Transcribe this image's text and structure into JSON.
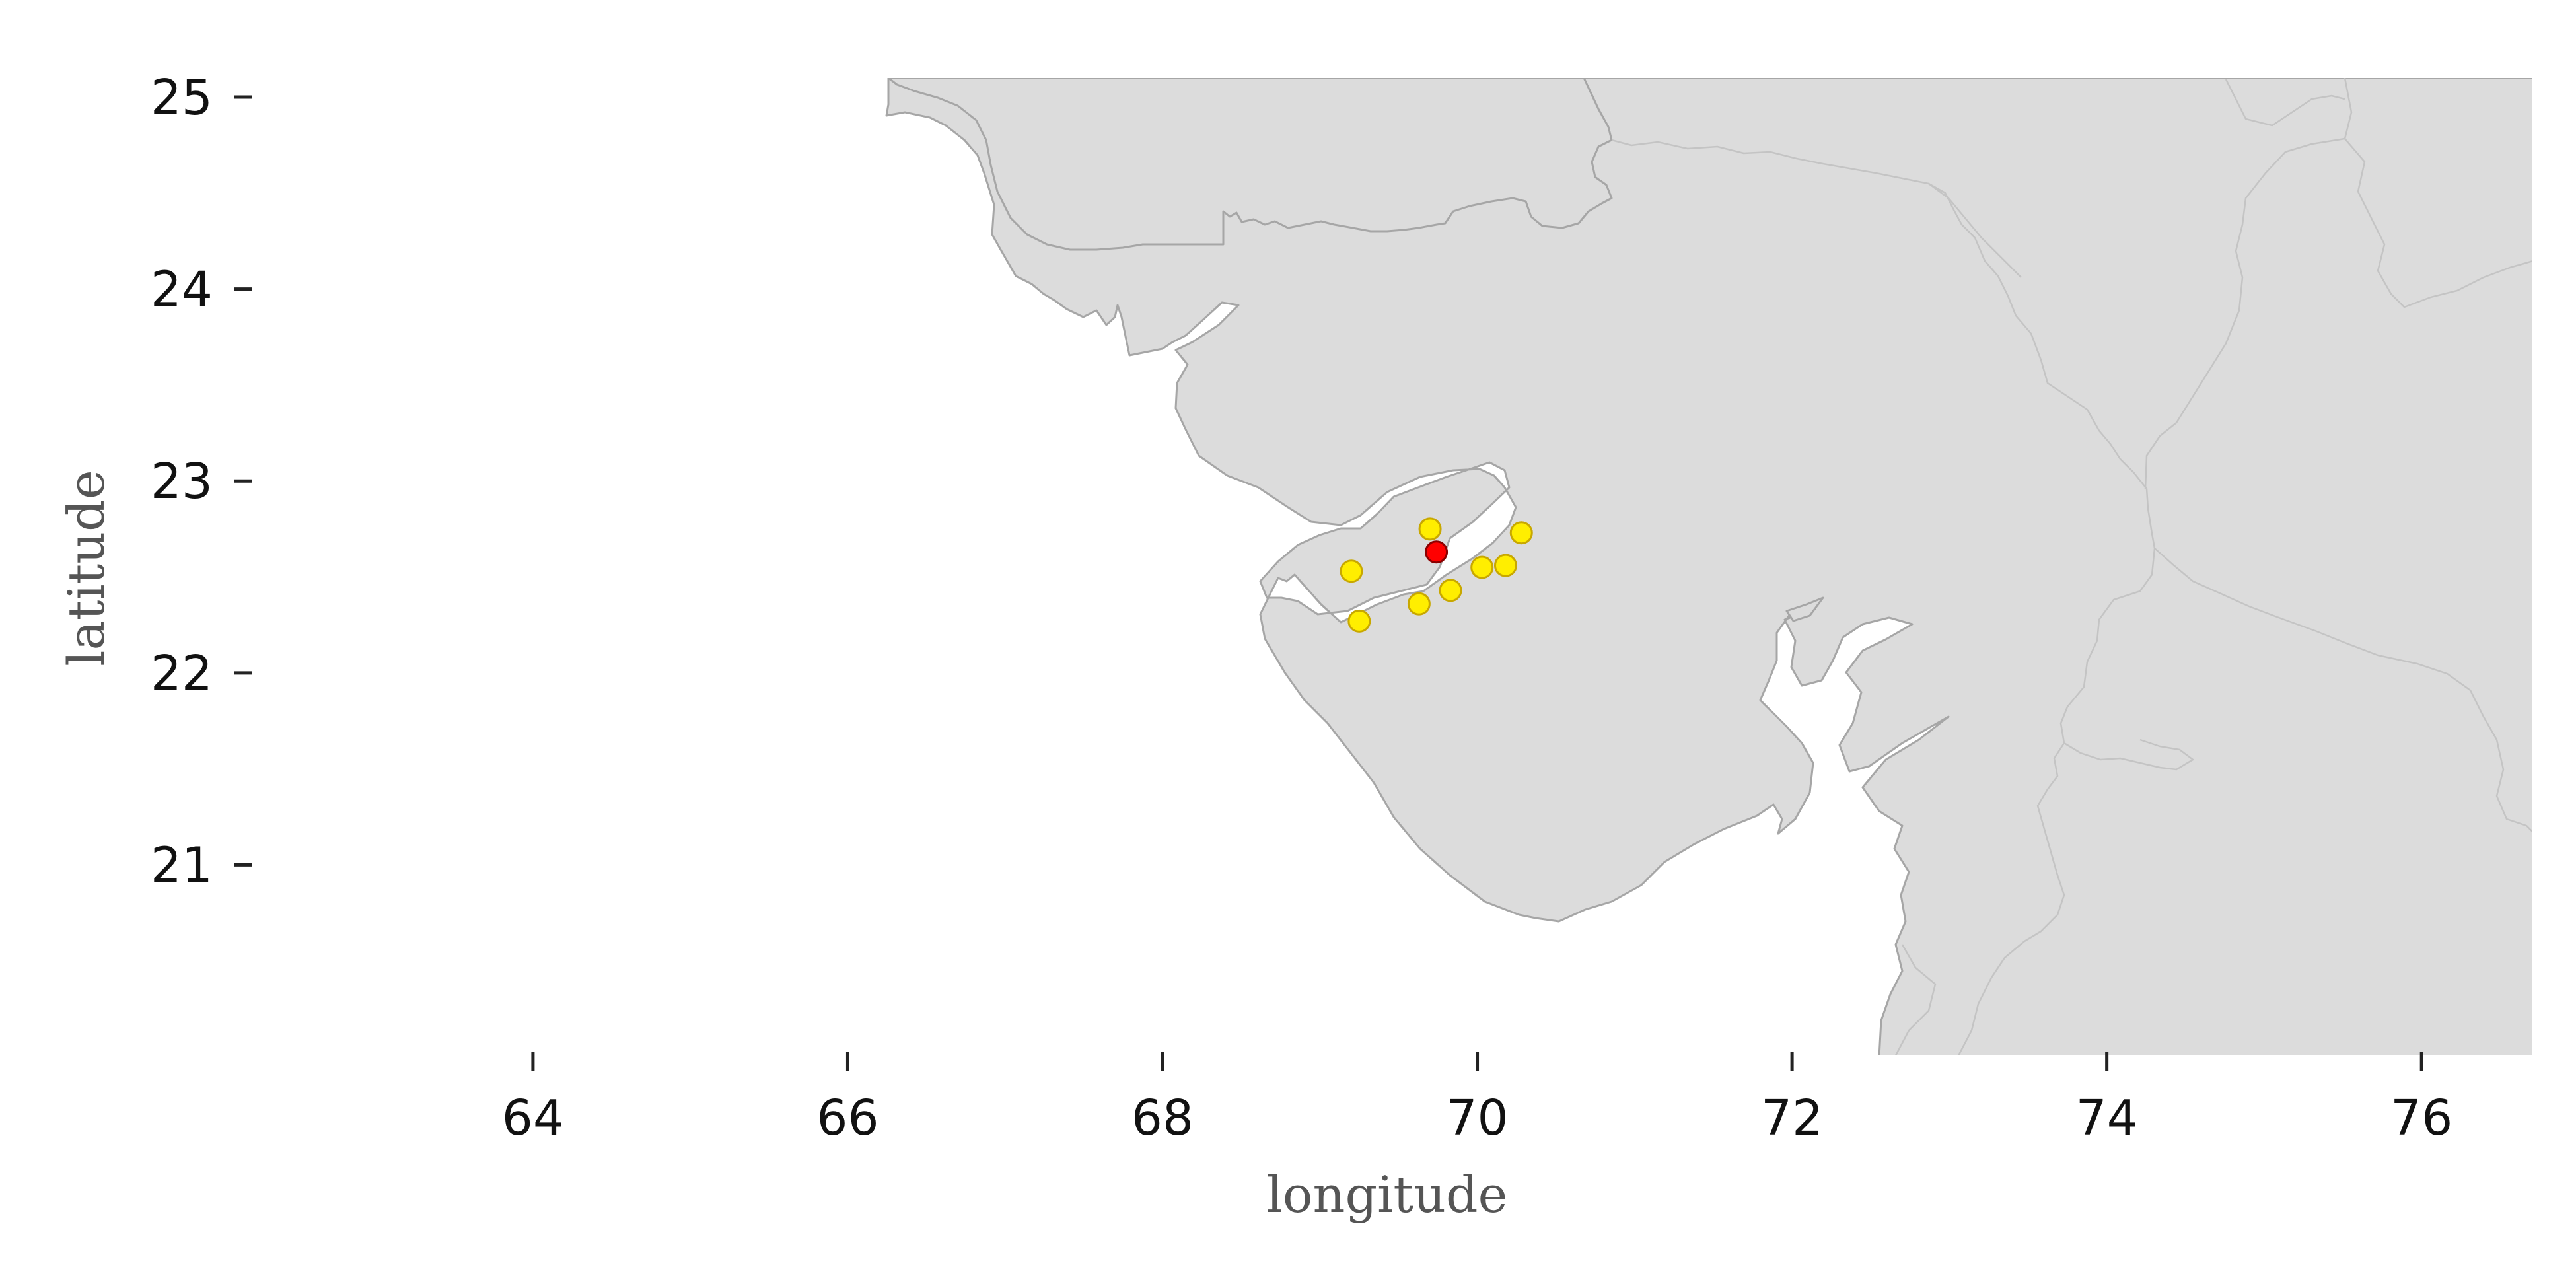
{
  "chart_data": {
    "type": "scatter",
    "title": "",
    "xlabel": "longitude",
    "ylabel": "latitude",
    "xlim": [
      62.2,
      76.7
    ],
    "ylim": [
      20.0,
      25.1
    ],
    "x_ticks": [
      64,
      66,
      68,
      70,
      72,
      74,
      76
    ],
    "y_ticks": [
      21,
      22,
      23,
      24,
      25
    ],
    "grid": false,
    "land_color": "#dcdcdc",
    "coastline_color": "#a6a6a6",
    "series": [
      {
        "marker_color": "#ffee00",
        "edge_color": "#c8a800",
        "points": [
          {
            "lon": 69.7,
            "lat": 22.75
          },
          {
            "lon": 69.2,
            "lat": 22.53
          },
          {
            "lon": 69.25,
            "lat": 22.27
          },
          {
            "lon": 69.63,
            "lat": 22.36
          },
          {
            "lon": 69.83,
            "lat": 22.43
          },
          {
            "lon": 70.03,
            "lat": 22.55
          },
          {
            "lon": 70.18,
            "lat": 22.56
          },
          {
            "lon": 70.28,
            "lat": 22.73
          }
        ]
      },
      {
        "marker_color": "#ff0000",
        "edge_color": "#8b0000",
        "points": [
          {
            "lon": 69.74,
            "lat": 22.63
          }
        ]
      }
    ]
  }
}
